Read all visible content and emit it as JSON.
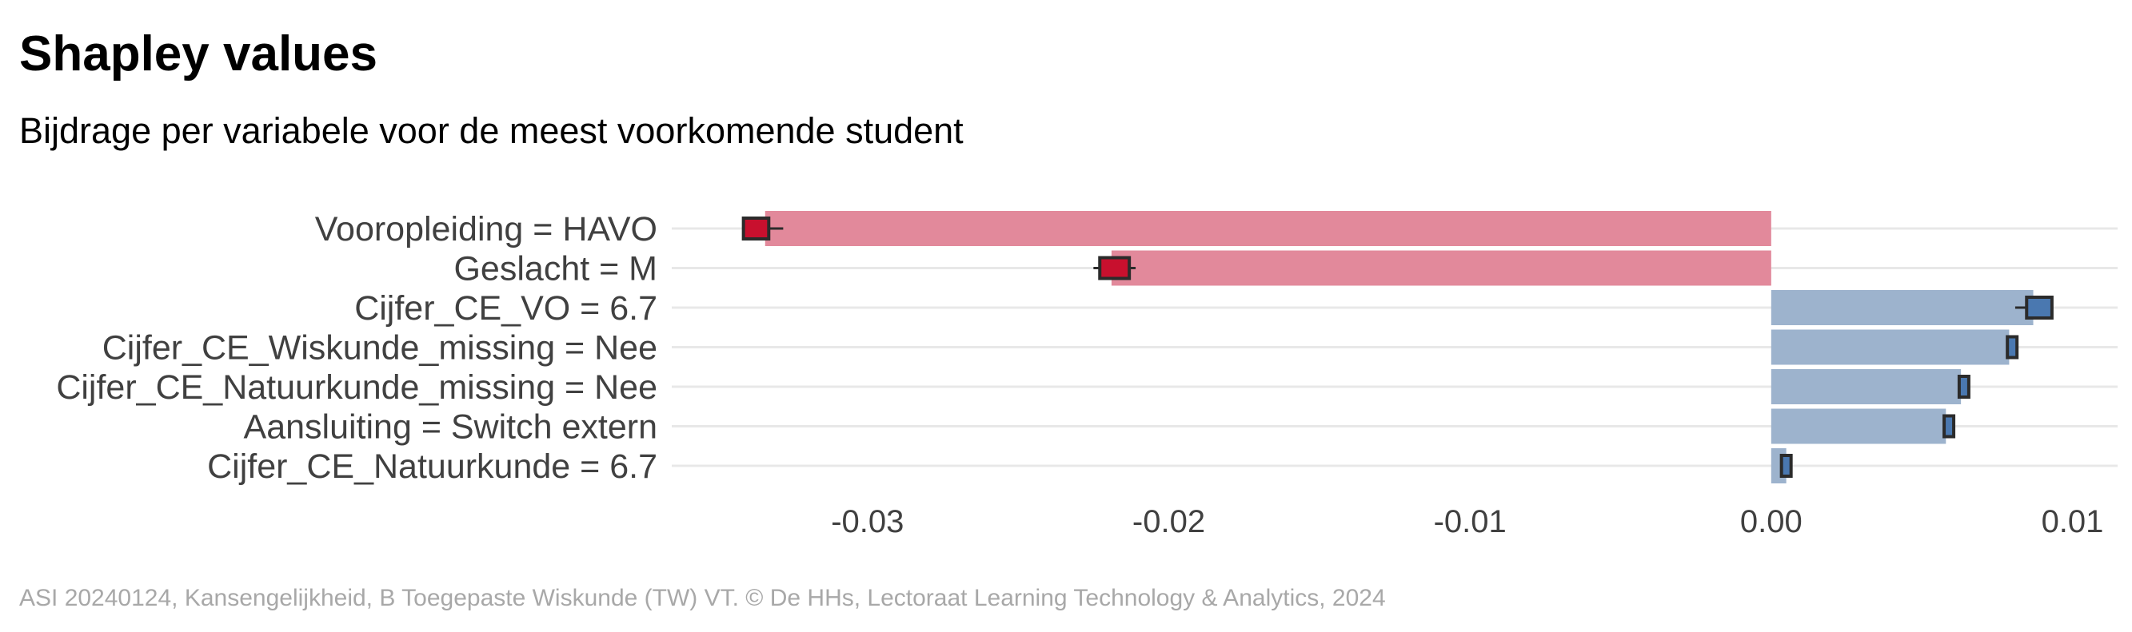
{
  "title": "Shapley values",
  "subtitle": "Bijdrage per variabele voor de meest voorkomende student",
  "caption": "ASI 20240124, Kansengelijkheid, B Toegepaste Wiskunde (TW) VT. © De HHs, Lectoraat Learning Technology & Analytics, 2024",
  "colors": {
    "negative_bar": "#E2899B",
    "negative_point": "#C8102E",
    "positive_bar": "#9DB3CD",
    "positive_point": "#4A78B0",
    "error_bar": "#2B2B2B",
    "grid": "#E8E8E8"
  },
  "chart_data": {
    "type": "bar",
    "orientation": "horizontal",
    "categories": [
      "Vooropleiding = HAVO",
      "Geslacht = M",
      "Cijfer_CE_VO = 6.7",
      "Cijfer_CE_Wiskunde_missing = Nee",
      "Cijfer_CE_Natuurkunde_missing = Nee",
      "Aansluiting = Switch extern",
      "Cijfer_CE_Natuurkunde = 6.7"
    ],
    "values": [
      -0.0334,
      -0.0219,
      0.0087,
      0.0079,
      0.0063,
      0.0058,
      0.0005
    ],
    "points": [
      -0.0337,
      -0.0218,
      0.0089,
      0.008,
      0.0064,
      0.0059,
      0.0005
    ],
    "error_low": [
      -0.034,
      -0.0225,
      0.0081,
      0.0079,
      0.0063,
      0.0058,
      0.0004
    ],
    "error_high": [
      -0.0328,
      -0.0211,
      0.0093,
      0.008,
      0.0064,
      0.0059,
      0.0006
    ],
    "xlim": [
      -0.0365,
      0.0115
    ],
    "xticks": [
      -0.03,
      -0.02,
      -0.01,
      0.0,
      0.01
    ],
    "xtick_labels": [
      "-0.03",
      "-0.02",
      "-0.01",
      "0.00",
      "0.01"
    ],
    "xlabel": "",
    "ylabel": "",
    "grid": "horizontal",
    "legend": "none"
  }
}
